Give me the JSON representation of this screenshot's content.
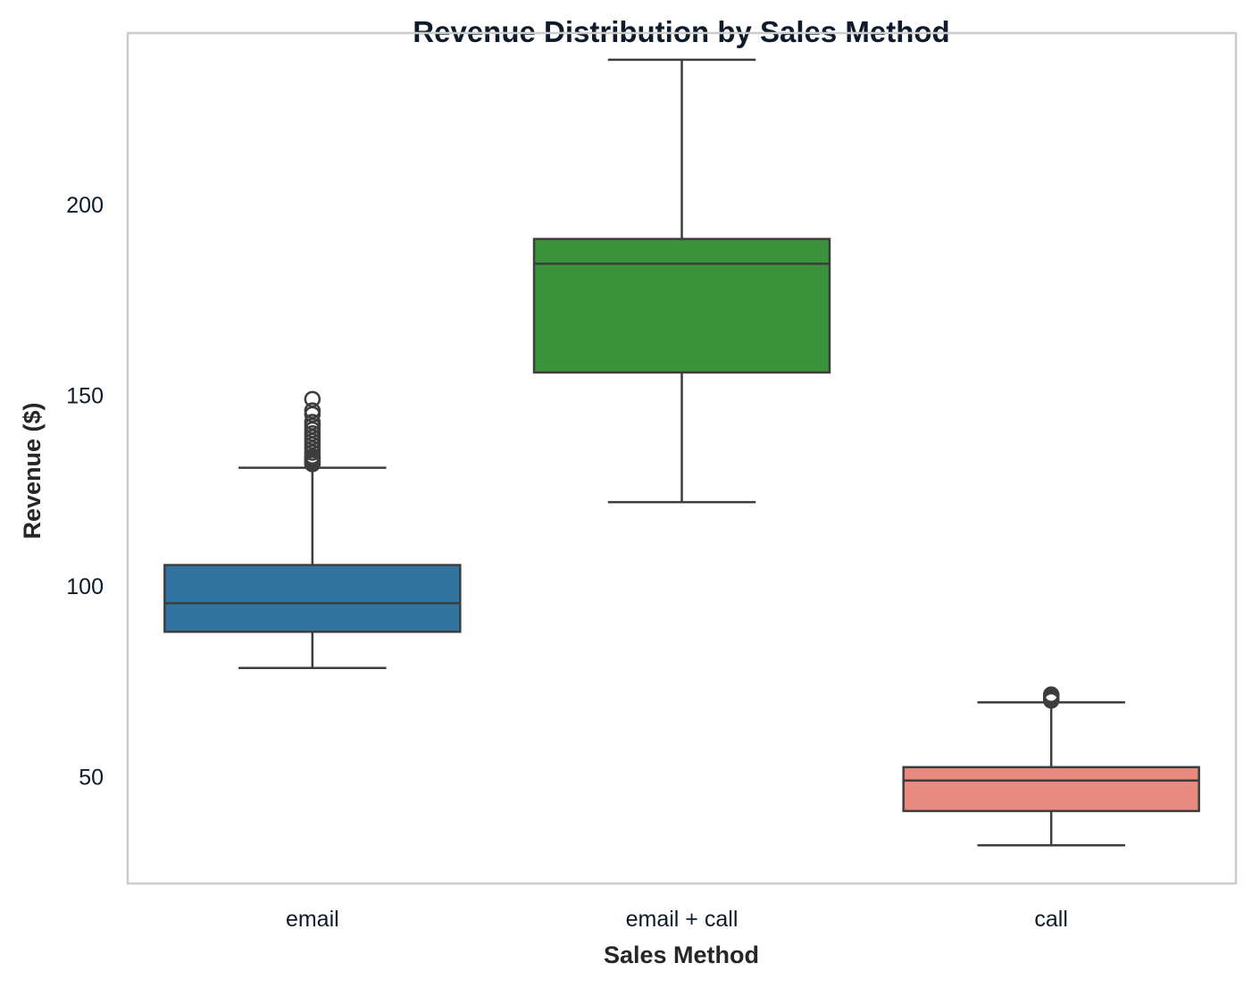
{
  "chart_data": {
    "type": "box",
    "title": "Revenue Distribution by Sales Method",
    "xlabel": "Sales Method",
    "ylabel": "Revenue ($)",
    "ylim": [
      22,
      245
    ],
    "yticks": [
      50,
      100,
      150,
      200
    ],
    "grid": false,
    "categories": [
      "email",
      "email + call",
      "call"
    ],
    "colors": {
      "email": "#3274a1",
      "email + call": "#3a923a",
      "call": "#e88a80",
      "edge": "#3d3d3d",
      "frame": "#cccccc"
    },
    "boxes": [
      {
        "category": "email",
        "whisker_low": 78.5,
        "q1": 88,
        "median": 95.5,
        "q3": 105.5,
        "whisker_high": 131,
        "outliers": [
          132,
          132.5,
          133,
          133.5,
          134,
          135,
          136,
          137,
          138,
          139,
          140,
          141,
          142,
          143,
          145,
          146,
          149
        ]
      },
      {
        "category": "email + call",
        "whisker_low": 122,
        "q1": 156,
        "median": 184.5,
        "q3": 191,
        "whisker_high": 238,
        "outliers": []
      },
      {
        "category": "call",
        "whisker_low": 32,
        "q1": 41,
        "median": 49,
        "q3": 52.5,
        "whisker_high": 69.5,
        "outliers": [
          70,
          70.5,
          71,
          71.5
        ]
      }
    ]
  }
}
